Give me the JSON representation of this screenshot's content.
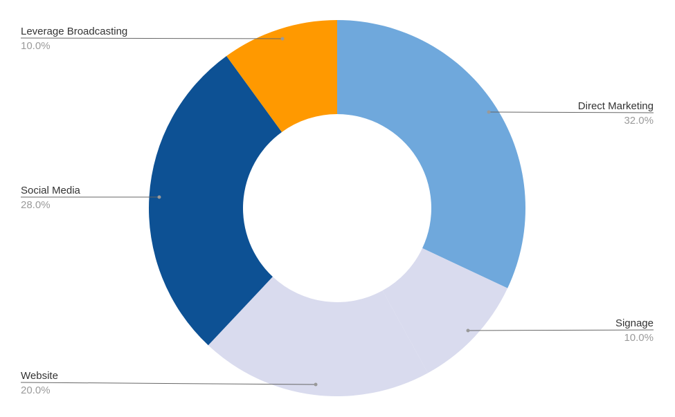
{
  "chart_data": {
    "type": "pie",
    "subtype": "donut",
    "legend": "none",
    "slices": [
      {
        "label": "Direct Marketing",
        "value": 32.0,
        "percent_label": "32.0%",
        "color": "#6fa8dc"
      },
      {
        "label": "Signage",
        "value": 10.0,
        "percent_label": "10.0%",
        "color": "#d9dbee"
      },
      {
        "label": "Website",
        "value": 20.0,
        "percent_label": "20.0%",
        "color": "#d9dbee"
      },
      {
        "label": "Social Media",
        "value": 28.0,
        "percent_label": "28.0%",
        "color": "#0d5194"
      },
      {
        "label": "Leverage  Broadcasting",
        "value": 10.0,
        "percent_label": "10.0%",
        "color": "#ff9900"
      }
    ]
  },
  "colors": {
    "leader_line": "#666666",
    "label_text": "#333333",
    "percent_text": "#9a9a9a"
  }
}
